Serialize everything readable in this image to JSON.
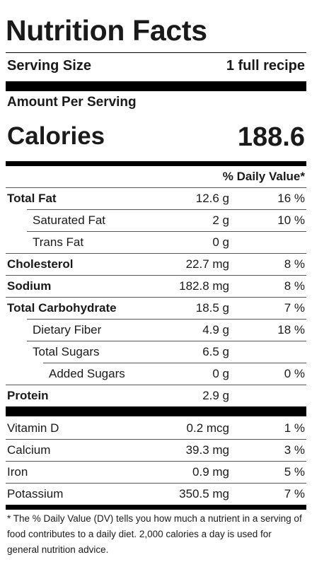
{
  "title": "Nutrition Facts",
  "serving": {
    "label": "Serving Size",
    "value": "1 full recipe"
  },
  "amount_per_serving": "Amount Per Serving",
  "calories": {
    "label": "Calories",
    "value": "188.6"
  },
  "daily_value_header": "% Daily Value*",
  "nutrients": [
    {
      "name": "Total Fat",
      "amount": "12.6 g",
      "dv": "16 %"
    },
    {
      "name": "Saturated Fat",
      "amount": "2 g",
      "dv": "10 %"
    },
    {
      "name": "Trans Fat",
      "amount": "0 g",
      "dv": ""
    },
    {
      "name": "Cholesterol",
      "amount": "22.7 mg",
      "dv": "8 %"
    },
    {
      "name": "Sodium",
      "amount": "182.8 mg",
      "dv": "8 %"
    },
    {
      "name": "Total Carbohydrate",
      "amount": "18.5 g",
      "dv": "7 %"
    },
    {
      "name": "Dietary Fiber",
      "amount": "4.9 g",
      "dv": "18 %"
    },
    {
      "name": "Total Sugars",
      "amount": "6.5 g",
      "dv": ""
    },
    {
      "name": "Added Sugars",
      "amount": "0 g",
      "dv": "0 %"
    },
    {
      "name": "Protein",
      "amount": "2.9 g",
      "dv": ""
    }
  ],
  "vitamins": [
    {
      "name": "Vitamin D",
      "amount": "0.2 mcg",
      "dv": "1 %"
    },
    {
      "name": "Calcium",
      "amount": "39.3 mg",
      "dv": "3 %"
    },
    {
      "name": "Iron",
      "amount": "0.9 mg",
      "dv": "5 %"
    },
    {
      "name": "Potassium",
      "amount": "350.5 mg",
      "dv": "7 %"
    }
  ],
  "footnote": "* The % Daily Value (DV) tells you how much a nutrient in a serving of food contributes to a daily diet. 2,000 calories a day is used for general nutrition advice."
}
